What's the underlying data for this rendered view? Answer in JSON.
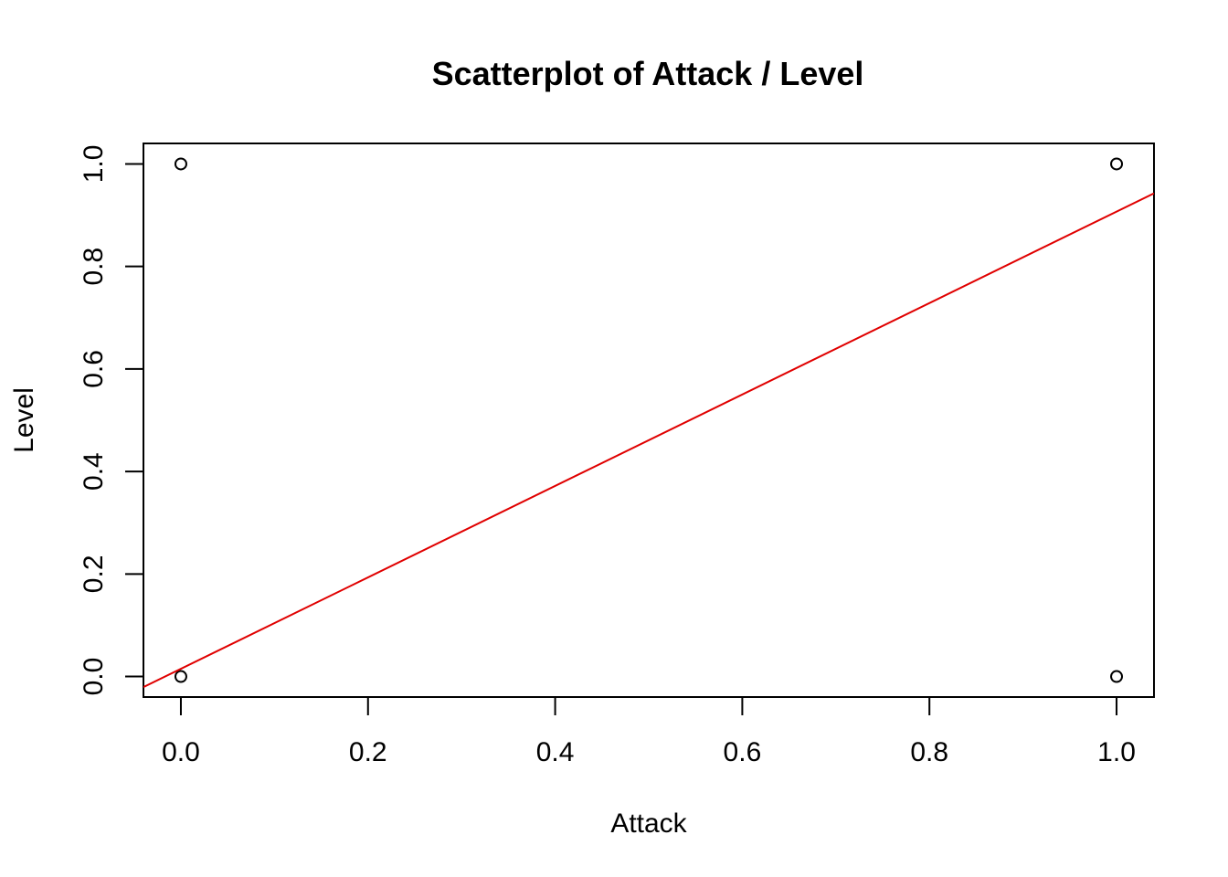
{
  "chart_data": {
    "type": "scatter",
    "title": "Scatterplot of Attack / Level",
    "xlabel": "Attack",
    "ylabel": "Level",
    "xlim": [
      -0.04,
      1.04
    ],
    "ylim": [
      -0.04,
      1.04
    ],
    "xticks": [
      "0.0",
      "0.2",
      "0.4",
      "0.6",
      "0.8",
      "1.0"
    ],
    "yticks": [
      "0.0",
      "0.2",
      "0.4",
      "0.6",
      "0.8",
      "1.0"
    ],
    "points": [
      {
        "x": 0,
        "y": 1
      },
      {
        "x": 0,
        "y": 0
      },
      {
        "x": 1,
        "y": 1
      },
      {
        "x": 1,
        "y": 0
      }
    ],
    "fit_line": {
      "intercept": 0.015,
      "slope": 0.892,
      "color": "#e00000"
    },
    "grid": false,
    "legend": "none"
  }
}
